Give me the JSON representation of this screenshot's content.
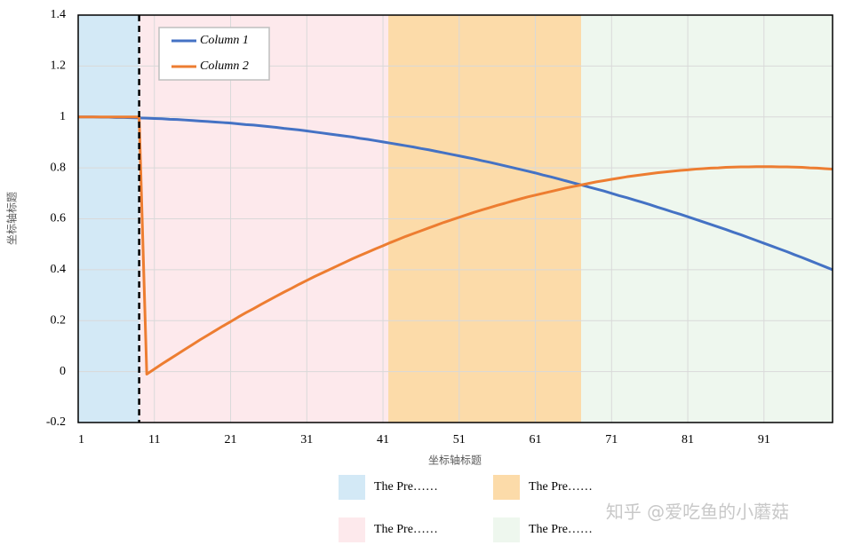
{
  "chart_data": {
    "type": "line",
    "xlabel": "坐标轴标题",
    "ylabel": "坐标轴标题",
    "x": [
      1,
      2,
      3,
      4,
      5,
      6,
      7,
      8,
      9,
      10,
      11,
      12,
      13,
      14,
      15,
      16,
      17,
      18,
      19,
      20,
      21,
      22,
      23,
      24,
      25,
      26,
      27,
      28,
      29,
      30,
      31,
      32,
      33,
      34,
      35,
      36,
      37,
      38,
      39,
      40,
      41,
      42,
      43,
      44,
      45,
      46,
      47,
      48,
      49,
      50,
      51,
      52,
      53,
      54,
      55,
      56,
      57,
      58,
      59,
      60,
      61,
      62,
      63,
      64,
      65,
      66,
      67,
      68,
      69,
      70,
      71,
      72,
      73,
      74,
      75,
      76,
      77,
      78,
      79,
      80,
      81,
      82,
      83,
      84,
      85,
      86,
      87,
      88,
      89,
      90,
      91,
      92,
      93,
      94,
      95,
      96,
      97,
      98,
      99,
      100
    ],
    "series": [
      {
        "name": "Column 1",
        "color": "#4472c4",
        "values": [
          1.0,
          1.0,
          1.0,
          0.999,
          0.999,
          0.998,
          0.998,
          0.997,
          0.996,
          0.995,
          0.994,
          0.993,
          0.991,
          0.99,
          0.988,
          0.986,
          0.984,
          0.982,
          0.98,
          0.978,
          0.976,
          0.973,
          0.97,
          0.968,
          0.965,
          0.962,
          0.959,
          0.955,
          0.952,
          0.949,
          0.945,
          0.941,
          0.937,
          0.933,
          0.929,
          0.925,
          0.921,
          0.916,
          0.912,
          0.907,
          0.902,
          0.897,
          0.892,
          0.887,
          0.882,
          0.876,
          0.871,
          0.865,
          0.859,
          0.853,
          0.847,
          0.841,
          0.835,
          0.828,
          0.822,
          0.815,
          0.808,
          0.801,
          0.794,
          0.787,
          0.78,
          0.772,
          0.765,
          0.757,
          0.749,
          0.741,
          0.733,
          0.725,
          0.717,
          0.709,
          0.7,
          0.691,
          0.683,
          0.674,
          0.665,
          0.656,
          0.646,
          0.637,
          0.627,
          0.618,
          0.608,
          0.598,
          0.588,
          0.578,
          0.568,
          0.558,
          0.547,
          0.537,
          0.526,
          0.515,
          0.504,
          0.493,
          0.482,
          0.471,
          0.459,
          0.448,
          0.436,
          0.424,
          0.412,
          0.4
        ]
      },
      {
        "name": "Column 2",
        "color": "#ed7d31",
        "values": [
          1,
          1,
          1,
          1,
          1,
          1,
          1,
          1,
          1,
          -0.01,
          0.01,
          0.03,
          0.049,
          0.068,
          0.087,
          0.106,
          0.125,
          0.143,
          0.161,
          0.179,
          0.196,
          0.214,
          0.231,
          0.247,
          0.264,
          0.28,
          0.296,
          0.312,
          0.327,
          0.343,
          0.358,
          0.373,
          0.387,
          0.401,
          0.415,
          0.429,
          0.443,
          0.456,
          0.469,
          0.482,
          0.494,
          0.507,
          0.519,
          0.531,
          0.542,
          0.553,
          0.564,
          0.575,
          0.586,
          0.596,
          0.606,
          0.616,
          0.626,
          0.635,
          0.644,
          0.653,
          0.661,
          0.67,
          0.678,
          0.686,
          0.693,
          0.7,
          0.707,
          0.714,
          0.721,
          0.727,
          0.733,
          0.739,
          0.745,
          0.75,
          0.755,
          0.76,
          0.765,
          0.769,
          0.773,
          0.777,
          0.781,
          0.784,
          0.787,
          0.79,
          0.792,
          0.795,
          0.797,
          0.799,
          0.8,
          0.802,
          0.803,
          0.804,
          0.804,
          0.805,
          0.805,
          0.805,
          0.804,
          0.804,
          0.803,
          0.802,
          0.8,
          0.799,
          0.797,
          0.795
        ]
      }
    ],
    "regions": [
      {
        "name": "The Pre……",
        "color": "#d3e9f6",
        "x": [
          1,
          9
        ]
      },
      {
        "name": "The Pre……",
        "color": "#fde9ec",
        "x": [
          9,
          41.7
        ]
      },
      {
        "name": "The Pre……",
        "color": "#fcdba9",
        "x": [
          41.7,
          67
        ]
      },
      {
        "name": "The Pre……",
        "color": "#eef7ee",
        "x": [
          67,
          100
        ]
      }
    ],
    "vline": {
      "x": 9,
      "color": "#000000"
    },
    "xlim": [
      1,
      100
    ],
    "xticks": [
      1,
      11,
      21,
      31,
      41,
      51,
      61,
      71,
      81,
      91
    ],
    "ylim": [
      -0.2,
      1.4
    ],
    "yticks": [
      -0.2,
      0,
      0.2,
      0.4,
      0.6,
      0.8,
      1,
      1.2,
      1.4
    ],
    "grid": true,
    "legend": "upper left",
    "watermark": "知乎 @爱吃鱼的小蘑菇"
  }
}
